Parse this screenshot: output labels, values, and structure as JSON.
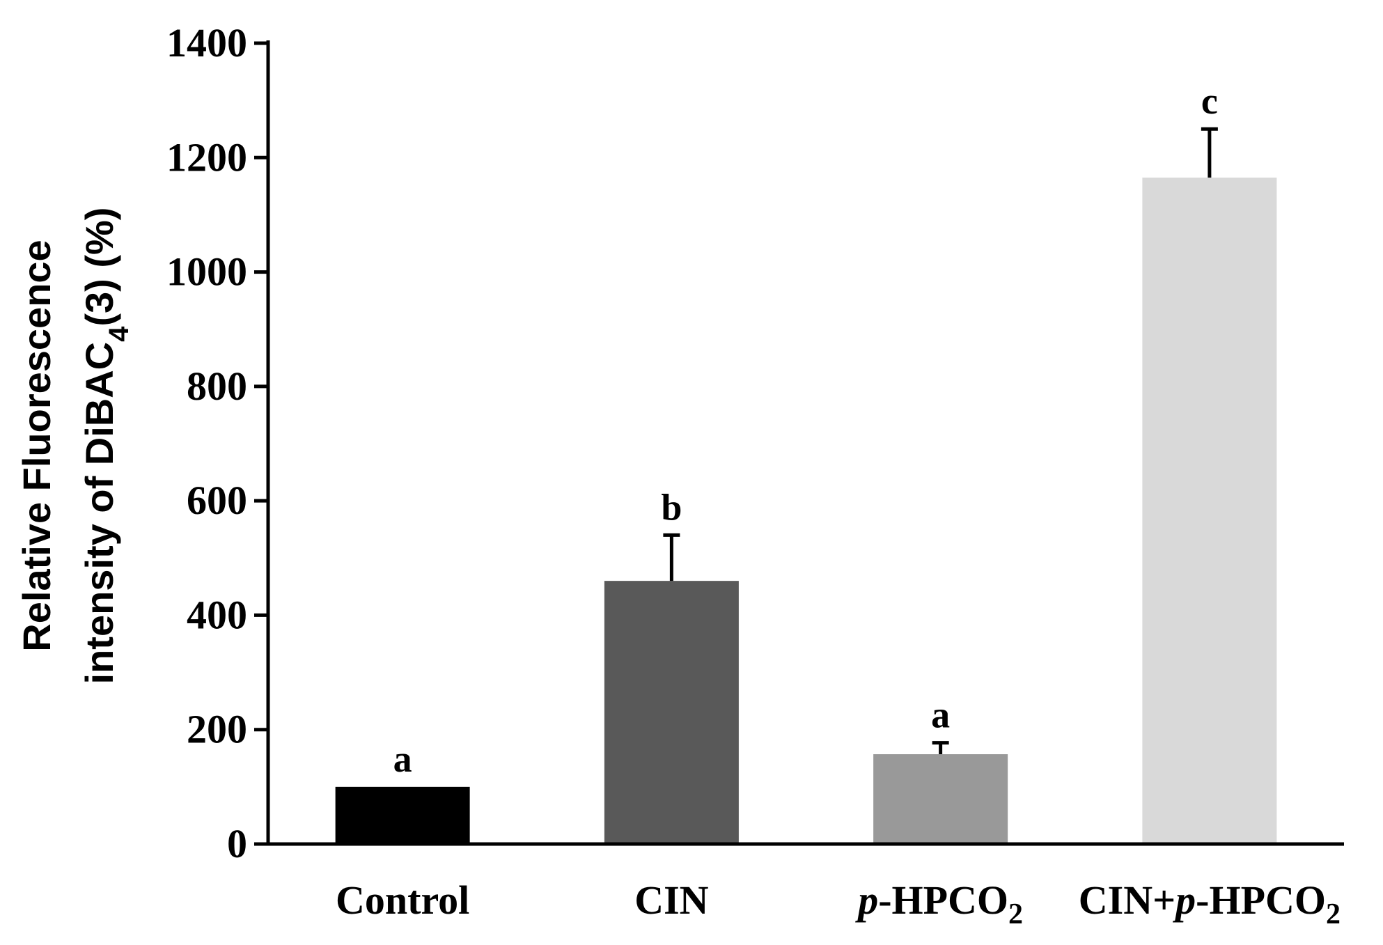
{
  "chart_data": {
    "type": "bar",
    "title": "",
    "xlabel": "",
    "ylabel": {
      "line1": "Relative Fluorescence",
      "line2_prefix": "intensity of DiBAC",
      "line2_sub": "4",
      "line2_suffix": "(3) (%)"
    },
    "ylim": [
      0,
      1400
    ],
    "yticks": [
      0,
      200,
      400,
      600,
      800,
      1000,
      1200,
      1400
    ],
    "grid": false,
    "categories": [
      {
        "name": "Control",
        "parts": [
          {
            "t": "Control"
          }
        ]
      },
      {
        "name": "CIN",
        "parts": [
          {
            "t": "CIN"
          }
        ]
      },
      {
        "name": "p-HPCO2",
        "parts": [
          {
            "t": "p",
            "i": true
          },
          {
            "t": "-HPCO"
          },
          {
            "t": "2",
            "sub": true
          }
        ]
      },
      {
        "name": "CIN+p-HPCO2",
        "parts": [
          {
            "t": "CIN+"
          },
          {
            "t": "p",
            "i": true
          },
          {
            "t": "-HPCO"
          },
          {
            "t": "2",
            "sub": true
          }
        ]
      }
    ],
    "values": [
      100,
      460,
      157,
      1165
    ],
    "errors": [
      0,
      80,
      20,
      85
    ],
    "significance": [
      "a",
      "b",
      "a",
      "c"
    ],
    "colors": [
      "#000000",
      "#595959",
      "#999999",
      "#d9d9d9"
    ]
  }
}
